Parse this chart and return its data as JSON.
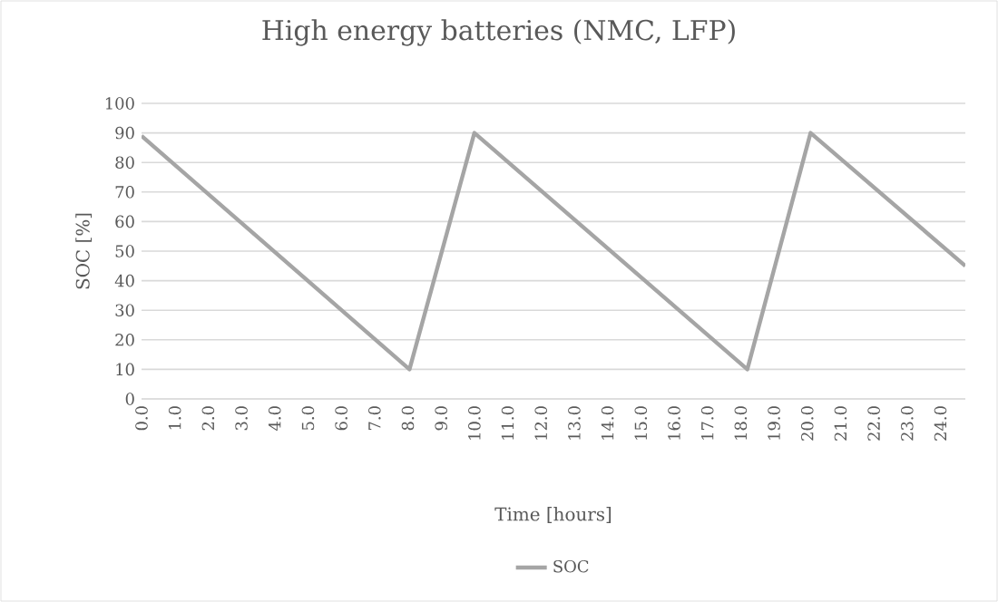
{
  "chart_data": {
    "type": "line",
    "title": "High energy batteries (NMC, LFP)",
    "xlabel": "Time [hours]",
    "ylabel": "SOC [%]",
    "series": [
      {
        "name": "SOC",
        "color": "#a5a5a5",
        "x": [
          0,
          8.05,
          10.0,
          18.2,
          20.1,
          24.75
        ],
        "values": [
          89,
          10,
          90,
          10,
          90,
          45
        ]
      }
    ],
    "xlim": [
      0,
      24.75
    ],
    "xticks": [
      {
        "value": 0,
        "label": "0.0"
      },
      {
        "value": 1,
        "label": "1.0"
      },
      {
        "value": 2,
        "label": "2.0"
      },
      {
        "value": 3,
        "label": "3.0"
      },
      {
        "value": 4,
        "label": "4.0"
      },
      {
        "value": 5,
        "label": "5.0"
      },
      {
        "value": 6,
        "label": "6.0"
      },
      {
        "value": 7,
        "label": "7.0"
      },
      {
        "value": 8,
        "label": "8.0"
      },
      {
        "value": 9,
        "label": "9.0"
      },
      {
        "value": 10,
        "label": "10.0"
      },
      {
        "value": 11,
        "label": "11.0"
      },
      {
        "value": 12,
        "label": "12.0"
      },
      {
        "value": 13,
        "label": "13.0"
      },
      {
        "value": 14,
        "label": "14.0"
      },
      {
        "value": 15,
        "label": "15.0"
      },
      {
        "value": 16,
        "label": "16.0"
      },
      {
        "value": 17,
        "label": "17.0"
      },
      {
        "value": 18,
        "label": "18.0"
      },
      {
        "value": 19,
        "label": "19.0"
      },
      {
        "value": 20,
        "label": "20.0"
      },
      {
        "value": 21,
        "label": "21.0"
      },
      {
        "value": 22,
        "label": "22.0"
      },
      {
        "value": 23,
        "label": "23.0"
      },
      {
        "value": 24,
        "label": "24.0"
      }
    ],
    "ylim": [
      0,
      100
    ],
    "yticks": [
      0,
      10,
      20,
      30,
      40,
      50,
      60,
      70,
      80,
      90,
      100
    ],
    "grid": "y",
    "legend": "bottom",
    "marker": "none",
    "line_style": "solid"
  }
}
